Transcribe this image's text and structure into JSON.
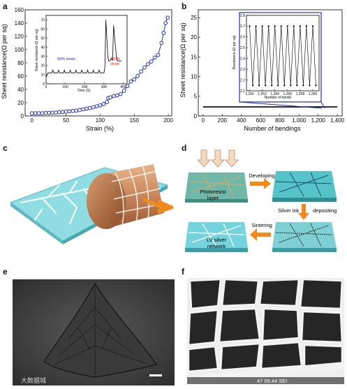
{
  "figure": {
    "panel_a": {
      "letter": "a",
      "ylabel": "Sheet resistance(Ω per sq)",
      "xlabel": "Strain (%)",
      "xticks": [
        "0",
        "50",
        "100",
        "150",
        "200"
      ],
      "yticks": [
        "0",
        "20",
        "40",
        "60",
        "80",
        "100",
        "120",
        "140",
        "160"
      ],
      "inset": {
        "ylabel": "Sheet resistance (Ω per sq)",
        "xlabel": "Time (S)",
        "xticks": [
          "0",
          "100",
          "200",
          "300",
          "400"
        ],
        "yticks": [
          "0",
          "10",
          "20",
          "30",
          "40",
          "50",
          "60",
          "70"
        ],
        "annotation_50": "50% strain",
        "annotation_100_line1": "100%",
        "annotation_100_line2": "strain",
        "color_50": "#1f2fb8",
        "color_100": "#e02020"
      }
    },
    "panel_b": {
      "letter": "b",
      "ylabel": "Sheet resistance(Ω per sq)",
      "xlabel": "Number of bendings",
      "xticks": [
        "0",
        "200",
        "400",
        "600",
        "800",
        "1,000",
        "1,200",
        "1,400"
      ],
      "yticks": [
        "0",
        "5",
        "10",
        "15",
        "20",
        "25"
      ],
      "inset": {
        "ylabel": "Resistance (Ω per sq)",
        "xlabel": "Number of bends",
        "xticks": [
          "1,250",
          "1,252",
          "1,254",
          "1,256",
          "1,258",
          "1,260"
        ],
        "yticks": [
          "2.1",
          "2.2",
          "2.3",
          "2.4",
          "2.5",
          "2.6",
          "2.7",
          "2.8"
        ]
      }
    },
    "panel_c": {
      "letter": "c"
    },
    "panel_d": {
      "letter": "d",
      "step_developing": "Developing",
      "step_photoresist_line1": "Photoresist",
      "step_photoresist_line2": "layer",
      "step_silver_ink": "Silver ink",
      "step_depositing": "depositing",
      "step_sintering": "Sintering",
      "step_lv_line1": "LV silver",
      "step_lv_line2": "network"
    },
    "panel_e": {
      "letter": "e",
      "watermark": "大数据城"
    },
    "panel_f": {
      "letter": "f",
      "sem_footer": "47    09.44 SEI"
    },
    "colors": {
      "accent_blue": "#2430b0",
      "arrow_orange": "#f08a1c",
      "substrate_cyan": "#7fd9e0"
    }
  },
  "chart_data": [
    {
      "type": "scatter",
      "panel": "a",
      "xlabel": "Strain (%)",
      "ylabel": "Sheet resistance(Ω per sq)",
      "xlim": [
        -10,
        205
      ],
      "ylim": [
        0,
        160
      ],
      "x": [
        0,
        5,
        10,
        15,
        20,
        25,
        30,
        35,
        40,
        45,
        50,
        55,
        60,
        65,
        70,
        75,
        80,
        85,
        90,
        95,
        100,
        105,
        110,
        112,
        115,
        120,
        125,
        130,
        135,
        140,
        145,
        150,
        155,
        160,
        165,
        170,
        175,
        180,
        185,
        190,
        193,
        196,
        199
      ],
      "y": [
        4,
        4,
        4,
        4,
        4.5,
        4.5,
        5,
        5,
        5.5,
        6,
        6.5,
        7,
        7.5,
        8,
        9,
        10,
        11,
        12,
        13,
        14.5,
        16,
        18,
        21,
        27,
        28,
        30,
        31,
        33,
        38,
        45,
        52,
        55,
        60,
        67,
        73,
        78,
        82,
        88,
        92,
        110,
        125,
        140,
        148
      ]
    },
    {
      "type": "line",
      "panel": "a-inset",
      "xlabel": "Time (S)",
      "ylabel": "Sheet resistance (Ω per sq)",
      "xlim": [
        0,
        420
      ],
      "ylim": [
        0,
        75
      ],
      "x": [
        0,
        10,
        30,
        35,
        40,
        60,
        65,
        70,
        90,
        95,
        100,
        120,
        125,
        130,
        150,
        155,
        160,
        180,
        185,
        190,
        210,
        215,
        220,
        240,
        245,
        250,
        270,
        275,
        280,
        300,
        305,
        310,
        320,
        325,
        330,
        340,
        345,
        350,
        360,
        365,
        370,
        380,
        390
      ],
      "y": [
        7,
        12,
        12,
        15,
        12,
        12,
        15,
        12,
        12,
        15,
        12,
        12,
        15,
        12,
        12,
        15,
        12,
        12,
        15,
        12,
        12,
        15,
        12,
        12,
        15,
        12,
        12,
        15,
        12,
        12,
        18,
        70,
        30,
        25,
        25,
        28,
        26,
        64,
        40,
        30,
        25,
        25,
        25
      ]
    },
    {
      "type": "line",
      "panel": "b",
      "xlabel": "Number of bendings",
      "ylabel": "Sheet resistance(Ω per sq)",
      "xlim": [
        -50,
        1450
      ],
      "ylim": [
        0,
        27
      ],
      "x": [
        0,
        200,
        400,
        600,
        800,
        1000,
        1200,
        1250,
        1260,
        1400
      ],
      "y": [
        2.3,
        2.3,
        2.3,
        2.3,
        2.3,
        2.3,
        2.3,
        2.3,
        2.3,
        2.3
      ]
    },
    {
      "type": "line",
      "panel": "b-inset",
      "xlabel": "Number of bends",
      "ylabel": "Resistance (Ω per sq)",
      "xlim": [
        1249.5,
        1261
      ],
      "ylim": [
        2.1,
        2.8
      ],
      "x": [
        1250,
        1250.5,
        1251,
        1251.5,
        1252,
        1252.5,
        1253,
        1253.5,
        1254,
        1254.5,
        1255,
        1255.5,
        1256,
        1256.5,
        1257,
        1257.5,
        1258,
        1258.5,
        1259,
        1259.5,
        1260,
        1260.5
      ],
      "y": [
        2.7,
        2.15,
        2.7,
        2.15,
        2.7,
        2.15,
        2.7,
        2.15,
        2.7,
        2.15,
        2.7,
        2.15,
        2.7,
        2.15,
        2.7,
        2.15,
        2.7,
        2.15,
        2.7,
        2.15,
        2.7,
        2.15
      ]
    }
  ]
}
